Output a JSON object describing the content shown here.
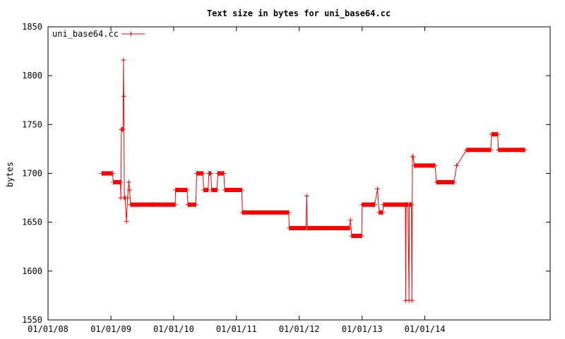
{
  "chart_data": {
    "type": "line",
    "title": "Text size in bytes for uni_base64.cc",
    "xlabel": "",
    "ylabel": "bytes",
    "xlim": [
      "2008-01-01",
      "2015-12-31"
    ],
    "ylim": [
      1550,
      1850
    ],
    "yticks": [
      1550,
      1600,
      1650,
      1700,
      1750,
      1800,
      1850
    ],
    "xticks": [
      "2008-01-01",
      "2009-01-01",
      "2010-01-01",
      "2011-01-01",
      "2012-01-01",
      "2013-01-01",
      "2014-01-01"
    ],
    "xtick_labels": [
      "01/01/08",
      "01/01/09",
      "01/01/10",
      "01/01/11",
      "01/01/12",
      "01/01/13",
      "01/01/14"
    ],
    "grid": false,
    "legend": "top-left",
    "color": "#ff0000",
    "series": [
      {
        "name": "uni_base64.cc",
        "marker": "plus",
        "points": [
          [
            "2008-11-10",
            1700
          ],
          [
            "2009-01-10",
            1700
          ],
          [
            "2009-01-15",
            1691
          ],
          [
            "2009-02-25",
            1691
          ],
          [
            "2009-02-28",
            1675
          ],
          [
            "2009-03-03",
            1745
          ],
          [
            "2009-03-05",
            1745
          ],
          [
            "2009-03-12",
            1745
          ],
          [
            "2009-03-15",
            1816
          ],
          [
            "2009-03-17",
            1779
          ],
          [
            "2009-03-20",
            1675
          ],
          [
            "2009-03-25",
            1675
          ],
          [
            "2009-04-01",
            1651
          ],
          [
            "2009-04-08",
            1675
          ],
          [
            "2009-04-15",
            1691
          ],
          [
            "2009-04-20",
            1683
          ],
          [
            "2009-04-25",
            1668
          ],
          [
            "2009-09-01",
            1668
          ],
          [
            "2010-01-10",
            1668
          ],
          [
            "2010-01-12",
            1683
          ],
          [
            "2010-03-20",
            1683
          ],
          [
            "2010-03-25",
            1668
          ],
          [
            "2010-05-10",
            1668
          ],
          [
            "2010-05-15",
            1700
          ],
          [
            "2010-06-20",
            1700
          ],
          [
            "2010-06-25",
            1683
          ],
          [
            "2010-07-20",
            1683
          ],
          [
            "2010-07-25",
            1700
          ],
          [
            "2010-08-05",
            1700
          ],
          [
            "2010-08-10",
            1683
          ],
          [
            "2010-09-10",
            1683
          ],
          [
            "2010-09-15",
            1700
          ],
          [
            "2010-10-20",
            1700
          ],
          [
            "2010-10-25",
            1683
          ],
          [
            "2011-02-01",
            1683
          ],
          [
            "2011-02-05",
            1660
          ],
          [
            "2011-11-01",
            1660
          ],
          [
            "2011-11-05",
            1644
          ],
          [
            "2012-02-10",
            1644
          ],
          [
            "2012-02-14",
            1677
          ],
          [
            "2012-02-18",
            1644
          ],
          [
            "2012-10-20",
            1644
          ],
          [
            "2012-10-25",
            1652
          ],
          [
            "2012-11-01",
            1636
          ],
          [
            "2012-12-30",
            1636
          ],
          [
            "2013-01-01",
            1668
          ],
          [
            "2013-03-01",
            1668
          ],
          [
            "2013-03-10",
            1668
          ],
          [
            "2013-03-15",
            1668
          ],
          [
            "2013-04-01",
            1684
          ],
          [
            "2013-04-10",
            1660
          ],
          [
            "2013-05-01",
            1660
          ],
          [
            "2013-05-05",
            1668
          ],
          [
            "2013-09-10",
            1668
          ],
          [
            "2013-09-12",
            1570
          ],
          [
            "2013-09-14",
            1668
          ],
          [
            "2013-09-25",
            1668
          ],
          [
            "2013-10-01",
            1570
          ],
          [
            "2013-10-03",
            1668
          ],
          [
            "2013-10-15",
            1668
          ],
          [
            "2013-10-18",
            1570
          ],
          [
            "2013-10-21",
            1717
          ],
          [
            "2013-10-25",
            1717
          ],
          [
            "2013-11-01",
            1708
          ],
          [
            "2014-03-01",
            1708
          ],
          [
            "2014-03-10",
            1691
          ],
          [
            "2014-06-20",
            1691
          ],
          [
            "2014-07-05",
            1708
          ],
          [
            "2014-09-01",
            1724
          ],
          [
            "2015-01-20",
            1724
          ],
          [
            "2015-01-25",
            1740
          ],
          [
            "2015-03-01",
            1740
          ],
          [
            "2015-03-05",
            1724
          ],
          [
            "2015-07-15",
            1724
          ],
          [
            "2015-08-05",
            1724
          ]
        ]
      }
    ]
  }
}
